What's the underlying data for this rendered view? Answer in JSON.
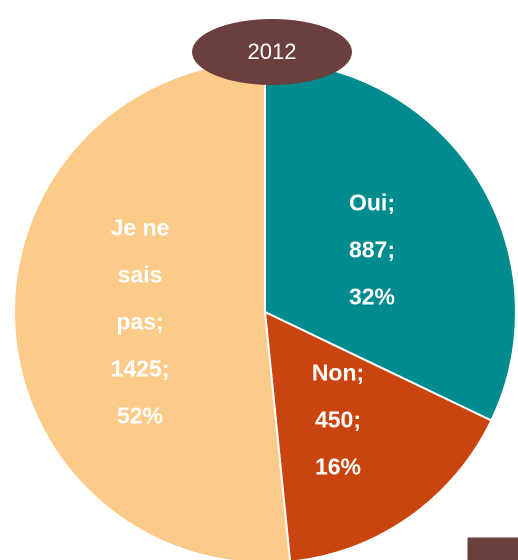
{
  "chart_data": {
    "type": "pie",
    "title": "2012",
    "categories": [
      "Oui",
      "Non",
      "Je ne sais pas"
    ],
    "values": [
      887,
      450,
      1425
    ],
    "value_labels": [
      "Oui;\n887;\n32%",
      "Non;\n450;\n16%",
      "Je ne\nsais\npas;\n1425;\n52%"
    ],
    "colors": [
      "#008b8f",
      "#c9440e",
      "#fccb8a"
    ]
  }
}
